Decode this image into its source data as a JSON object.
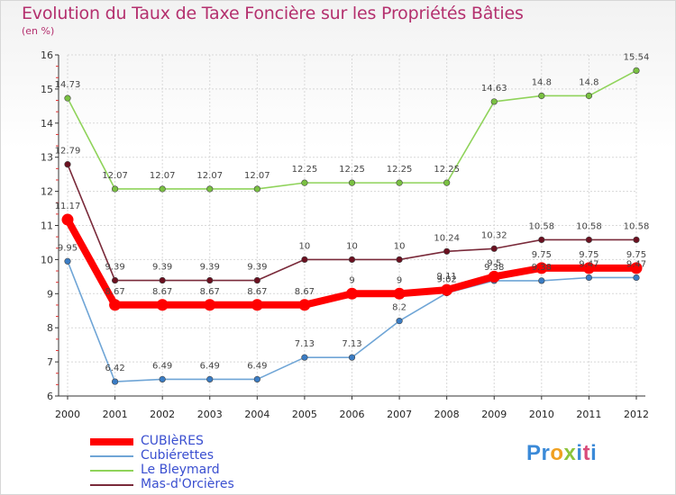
{
  "title": "Evolution du Taux de Taxe Foncière sur les Propriétés Bâties",
  "unit": "(en %)",
  "logo": {
    "text": "Proxiti",
    "letters": [
      "P",
      "r",
      "o",
      "x",
      "i",
      "t",
      "i"
    ],
    "colors": [
      "#3b8ad8",
      "#3b8ad8",
      "#f0a020",
      "#8cc43c",
      "#3b8ad8",
      "#d94b7a",
      "#3b8ad8"
    ]
  },
  "chart_data": {
    "type": "line",
    "title": "Evolution du Taux de Taxe Foncière sur les Propriétés Bâties",
    "ylabel": "(en %)",
    "xlabel": "",
    "ylim": [
      6,
      16
    ],
    "yticks": [
      "6",
      "7",
      "8",
      "9",
      "10",
      "11",
      "12",
      "13",
      "14",
      "15",
      "16"
    ],
    "x": [
      "2000",
      "2001",
      "2002",
      "2003",
      "2004",
      "2005",
      "2006",
      "2007",
      "2008",
      "2009",
      "2010",
      "2011",
      "2012"
    ],
    "series": [
      {
        "name": "Le Bleymard",
        "color": "#8fd35a",
        "marker": "#7ac142",
        "values": [
          14.73,
          12.07,
          12.07,
          12.07,
          12.07,
          12.25,
          12.25,
          12.25,
          12.25,
          14.63,
          14.8,
          14.8,
          15.54
        ],
        "labels": [
          "14.73",
          "12.07",
          "12.07",
          "12.07",
          "12.07",
          "12.25",
          "12.25",
          "12.25",
          "12.25",
          "14.63",
          "14.8",
          "14.8",
          "15.54"
        ]
      },
      {
        "name": "Mas-d'Orcières",
        "color": "#7a2a3a",
        "marker": "#6b1020",
        "values": [
          12.79,
          9.39,
          9.39,
          9.39,
          9.39,
          10,
          10,
          10,
          10.24,
          10.32,
          10.58,
          10.58,
          10.58
        ],
        "labels": [
          "12.79",
          "9.39",
          "9.39",
          "9.39",
          "9.39",
          "10",
          "10",
          "10",
          "10.24",
          "10.32",
          "10.58",
          "10.58",
          "10.58"
        ]
      },
      {
        "name": "Cubiérettes",
        "color": "#6fa5d6",
        "marker": "#3a7cc4",
        "values": [
          9.95,
          6.42,
          6.49,
          6.49,
          6.49,
          7.13,
          7.13,
          8.2,
          9.02,
          9.38,
          9.38,
          9.47,
          9.47
        ],
        "labels": [
          "9.95",
          "6.42",
          "6.49",
          "6.49",
          "6.49",
          "7.13",
          "7.13",
          "8.2",
          "9.02",
          "9.38",
          "9.38",
          "9.47",
          "9.47"
        ]
      },
      {
        "name": "CUBIèRES",
        "color": "#ff0000",
        "marker": "#ff0000",
        "values": [
          11.17,
          8.67,
          8.67,
          8.67,
          8.67,
          8.67,
          9,
          9,
          9.11,
          9.5,
          9.75,
          9.75,
          9.75
        ],
        "labels": [
          "11.17",
          "8.67",
          "8.67",
          "8.67",
          "8.67",
          "8.67",
          "9",
          "9",
          "9.11",
          "9.5",
          "9.75",
          "9.75",
          "9.75"
        ]
      }
    ]
  },
  "legend": [
    {
      "label": "CUBIèRES",
      "color": "#ff0000",
      "thick": true
    },
    {
      "label": "Cubiérettes",
      "color": "#6fa5d6",
      "thick": false
    },
    {
      "label": "Le Bleymard",
      "color": "#8fd35a",
      "thick": false
    },
    {
      "label": "Mas-d'Orcières",
      "color": "#7a2a3a",
      "thick": false
    }
  ]
}
